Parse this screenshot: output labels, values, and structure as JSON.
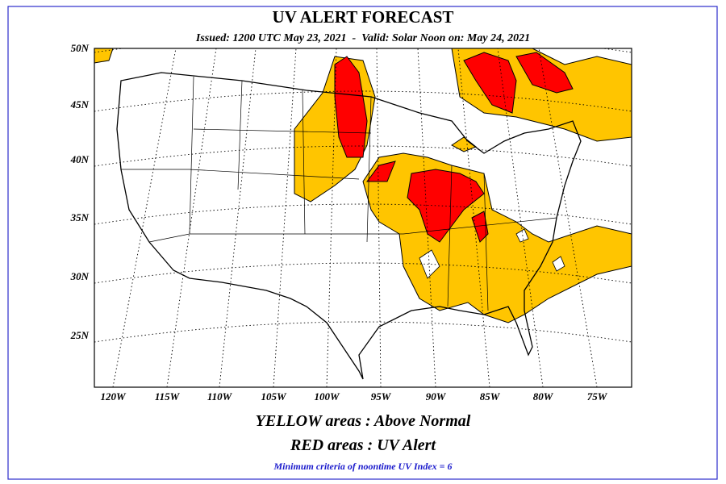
{
  "header": {
    "title": "UV ALERT FORECAST",
    "subtitle": "Issued: 1200 UTC May 23, 2021  -  Valid: Solar Noon on: May 24, 2021"
  },
  "map": {
    "lat_labels": [
      "50N",
      "45N",
      "40N",
      "35N",
      "30N",
      "25N"
    ],
    "lon_labels": [
      "120W",
      "115W",
      "110W",
      "105W",
      "100W",
      "95W",
      "90W",
      "85W",
      "80W",
      "75W"
    ]
  },
  "legend": {
    "yellow": "YELLOW areas : Above Normal",
    "red": "RED areas : UV Alert"
  },
  "footnote": "Minimum criteria of noontime UV Index = 6"
}
